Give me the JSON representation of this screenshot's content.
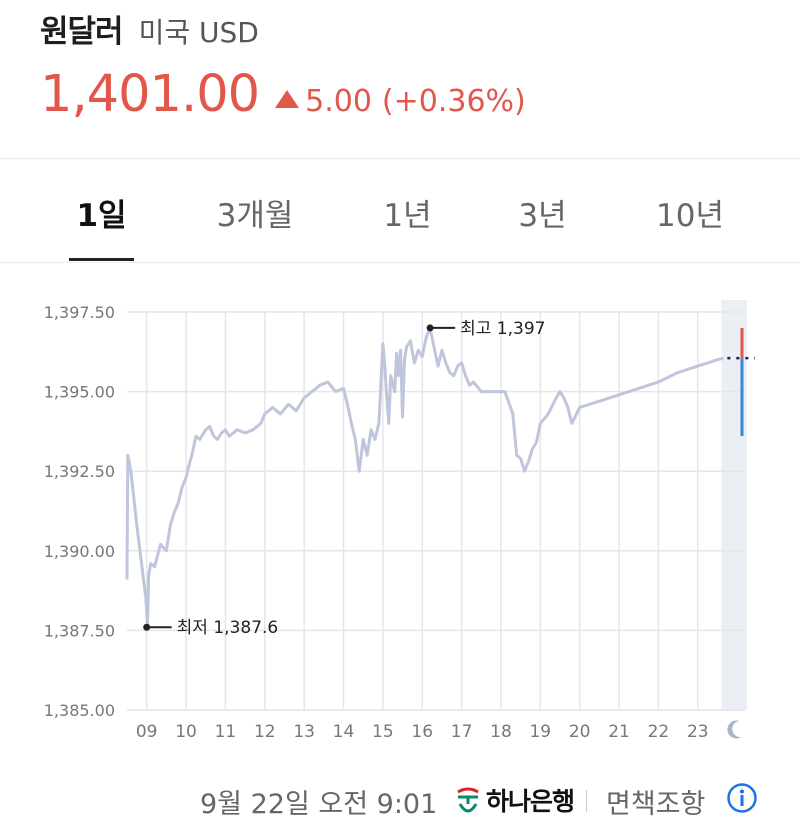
{
  "header": {
    "pair_name": "원달러",
    "pair_sub": "미국 USD",
    "price": "1,401.00",
    "change": "5.00",
    "change_pct": "(+0.36%)",
    "up_color": "#e2574c"
  },
  "tabs": [
    {
      "label": "1일",
      "active": true
    },
    {
      "label": "3개월",
      "active": false
    },
    {
      "label": "1년",
      "active": false
    },
    {
      "label": "3년",
      "active": false
    },
    {
      "label": "10년",
      "active": false
    }
  ],
  "footer": {
    "timestamp": "9월 22일 오전 9:01",
    "bank": "하나은행",
    "disclaimer": "면책조항"
  },
  "chart_data": {
    "type": "line",
    "ylim": [
      1385.0,
      1397.5
    ],
    "y_ticks": [
      "1,385.00",
      "1,387.50",
      "1,390.00",
      "1,392.50",
      "1,395.00",
      "1,397.50"
    ],
    "y_tick_values": [
      1385.0,
      1387.5,
      1390.0,
      1392.5,
      1395.0,
      1397.5
    ],
    "xlim": [
      8.5,
      24.2
    ],
    "x_ticks": [
      "09",
      "10",
      "11",
      "12",
      "13",
      "14",
      "15",
      "16",
      "17",
      "18",
      "19",
      "20",
      "21",
      "22",
      "23"
    ],
    "x_tick_values": [
      9,
      10,
      11,
      12,
      13,
      14,
      15,
      16,
      17,
      18,
      19,
      20,
      21,
      22,
      23
    ],
    "grid": true,
    "line_color": "#bfc6dc",
    "annotations": [
      {
        "label": "최고 1,397",
        "x": 16.2,
        "y": 1397.0
      },
      {
        "label": "최저 1,387.6",
        "x": 9.0,
        "y": 1387.6
      }
    ],
    "night_session": {
      "start": 23.65,
      "last_value": 1396.05,
      "high": 1397.0,
      "low": 1393.6,
      "up_color": "#e2574c",
      "down_color": "#3a86d8"
    },
    "series": [
      {
        "x": [
          8.5,
          8.52,
          8.6,
          8.75,
          8.9,
          8.98,
          9.02,
          9.05,
          9.1,
          9.2,
          9.35,
          9.5,
          9.6,
          9.7,
          9.8,
          9.9,
          10.0,
          10.1,
          10.15,
          10.25,
          10.35,
          10.5,
          10.6,
          10.7,
          10.8,
          10.9,
          11.0,
          11.1,
          11.3,
          11.5,
          11.7,
          11.9,
          12.0,
          12.2,
          12.4,
          12.6,
          12.8,
          13.0,
          13.2,
          13.4,
          13.6,
          13.8,
          14.0,
          14.1,
          14.2,
          14.3,
          14.4,
          14.5,
          14.6,
          14.7,
          14.8,
          14.9,
          15.0,
          15.05,
          15.1,
          15.15,
          15.2,
          15.3,
          15.35,
          15.4,
          15.45,
          15.5,
          15.55,
          15.6,
          15.7,
          15.8,
          15.9,
          16.0,
          16.1,
          16.2,
          16.3,
          16.4,
          16.5,
          16.6,
          16.7,
          16.8,
          16.9,
          17.0,
          17.1,
          17.2,
          17.3,
          17.5,
          17.7,
          17.9,
          18.1,
          18.3,
          18.4,
          18.5,
          18.6,
          18.7,
          18.8,
          18.9,
          19.0,
          19.2,
          19.4,
          19.5,
          19.6,
          19.7,
          19.8,
          20.0,
          20.5,
          21.0,
          21.5,
          22.0,
          22.5,
          23.0,
          23.5,
          23.65
        ],
        "y": [
          1389.1,
          1393.0,
          1392.5,
          1390.8,
          1389.3,
          1388.5,
          1387.6,
          1389.2,
          1389.6,
          1389.5,
          1390.2,
          1390.0,
          1390.8,
          1391.2,
          1391.5,
          1392.0,
          1392.3,
          1392.8,
          1393.0,
          1393.6,
          1393.5,
          1393.8,
          1393.9,
          1393.6,
          1393.5,
          1393.7,
          1393.8,
          1393.6,
          1393.8,
          1393.7,
          1393.8,
          1394.0,
          1394.3,
          1394.5,
          1394.3,
          1394.6,
          1394.4,
          1394.8,
          1395.0,
          1395.2,
          1395.3,
          1395.0,
          1395.1,
          1394.6,
          1394.0,
          1393.5,
          1392.5,
          1393.5,
          1393.0,
          1393.8,
          1393.5,
          1394.0,
          1396.5,
          1395.8,
          1394.8,
          1394.0,
          1395.5,
          1395.0,
          1396.2,
          1395.5,
          1396.3,
          1394.2,
          1396.0,
          1396.4,
          1396.6,
          1395.9,
          1396.3,
          1396.1,
          1396.7,
          1397.0,
          1396.4,
          1395.8,
          1396.3,
          1395.9,
          1395.6,
          1395.5,
          1395.8,
          1395.9,
          1395.5,
          1395.2,
          1395.3,
          1395.0,
          1395.0,
          1395.0,
          1395.0,
          1394.3,
          1393.0,
          1392.9,
          1392.5,
          1392.8,
          1393.2,
          1393.4,
          1394.0,
          1394.3,
          1394.8,
          1395.0,
          1394.8,
          1394.5,
          1394.0,
          1394.5,
          1394.7,
          1394.9,
          1395.1,
          1395.3,
          1395.6,
          1395.8,
          1396.0,
          1396.05
        ]
      }
    ]
  }
}
